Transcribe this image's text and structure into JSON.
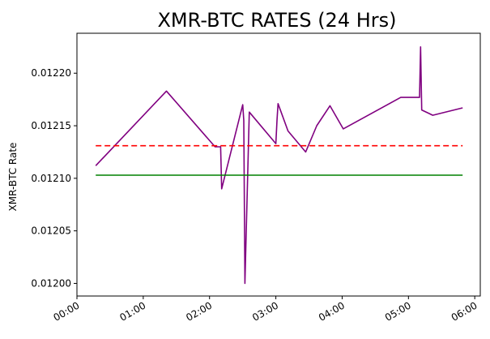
{
  "chart_data": {
    "type": "line",
    "title": "XMR-BTC RATES (24 Hrs)",
    "xlabel": "",
    "ylabel": "XMR-BTC Rate",
    "x_ticks": [
      "00:00",
      "01:00",
      "02:00",
      "03:00",
      "04:00",
      "05:00",
      "06:00"
    ],
    "y_ticks": [
      "0.01200",
      "0.01205",
      "0.01210",
      "0.01215",
      "0.01220"
    ],
    "xlim": [
      "00:00",
      "06:05"
    ],
    "ylim": [
      0.011988,
      0.012238
    ],
    "grid": false,
    "colors": {
      "rate": "#800080",
      "mean": "#ff0000",
      "baseline": "#008000"
    },
    "series": [
      {
        "style": "solid",
        "color": "#800080",
        "points": [
          [
            "00:17",
            0.012112
          ],
          [
            "01:21",
            0.012183
          ],
          [
            "02:05",
            0.01213
          ],
          [
            "02:10",
            0.01213
          ],
          [
            "02:11",
            0.01209
          ],
          [
            "02:30",
            0.01217
          ],
          [
            "02:31",
            0.012155
          ],
          [
            "02:32",
            0.012
          ],
          [
            "02:36",
            0.012163
          ],
          [
            "03:00",
            0.012133
          ],
          [
            "03:01",
            0.012155
          ],
          [
            "03:02",
            0.012171
          ],
          [
            "03:11",
            0.012145
          ],
          [
            "03:27",
            0.012125
          ],
          [
            "03:37",
            0.01215
          ],
          [
            "03:49",
            0.012169
          ],
          [
            "04:01",
            0.012147
          ],
          [
            "04:53",
            0.012177
          ],
          [
            "05:10",
            0.012177
          ],
          [
            "05:11",
            0.012225
          ],
          [
            "05:12",
            0.012165
          ],
          [
            "05:18",
            0.012162
          ],
          [
            "05:22",
            0.01216
          ],
          [
            "05:49",
            0.012167
          ]
        ]
      },
      {
        "style": "dashed",
        "color": "#ff0000",
        "points": [
          [
            "00:17",
            0.012131
          ],
          [
            "05:49",
            0.012131
          ]
        ]
      },
      {
        "style": "solid",
        "color": "#008000",
        "points": [
          [
            "00:17",
            0.012103
          ],
          [
            "05:49",
            0.012103
          ]
        ]
      }
    ]
  }
}
